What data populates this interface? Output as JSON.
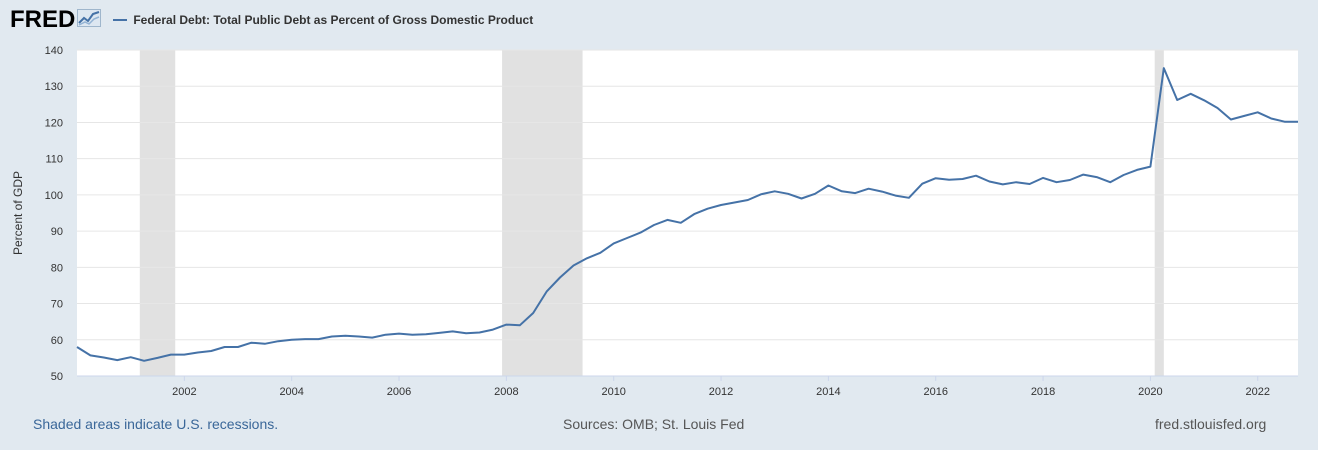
{
  "logo": {
    "text": "FRED",
    "icon": "chart-icon"
  },
  "colors": {
    "line": "#4572a7",
    "recession": "#e1e1e1",
    "plot_bg": "#ffffff",
    "page_bg": "#e1e9f0",
    "grid": "#e6e6e6"
  },
  "footer": {
    "recessions_note": "Shaded areas indicate U.S. recessions.",
    "sources": "Sources: OMB; St. Louis Fed",
    "site": "fred.stlouisfed.org"
  },
  "chart_data": {
    "type": "line",
    "title": "",
    "xlabel": "",
    "ylabel": "Percent of GDP",
    "xlim": [
      2000.0,
      2022.75
    ],
    "ylim": [
      50,
      140
    ],
    "yticks": [
      50,
      60,
      70,
      80,
      90,
      100,
      110,
      120,
      130,
      140
    ],
    "xticks": [
      "2002",
      "2004",
      "2006",
      "2008",
      "2010",
      "2012",
      "2014",
      "2016",
      "2018",
      "2020",
      "2022"
    ],
    "grid": true,
    "legend_position": "top-left",
    "recessions": [
      [
        2001.17,
        2001.83
      ],
      [
        2007.92,
        2009.42
      ],
      [
        2020.08,
        2020.25
      ]
    ],
    "series": [
      {
        "name": "Federal Debt: Total Public Debt as Percent of Gross Domestic Product",
        "x": [
          2000.0,
          2000.25,
          2000.5,
          2000.75,
          2001.0,
          2001.25,
          2001.5,
          2001.75,
          2002.0,
          2002.25,
          2002.5,
          2002.75,
          2003.0,
          2003.25,
          2003.5,
          2003.75,
          2004.0,
          2004.25,
          2004.5,
          2004.75,
          2005.0,
          2005.25,
          2005.5,
          2005.75,
          2006.0,
          2006.25,
          2006.5,
          2006.75,
          2007.0,
          2007.25,
          2007.5,
          2007.75,
          2008.0,
          2008.25,
          2008.5,
          2008.75,
          2009.0,
          2009.25,
          2009.5,
          2009.75,
          2010.0,
          2010.25,
          2010.5,
          2010.75,
          2011.0,
          2011.25,
          2011.5,
          2011.75,
          2012.0,
          2012.25,
          2012.5,
          2012.75,
          2013.0,
          2013.25,
          2013.5,
          2013.75,
          2014.0,
          2014.25,
          2014.5,
          2014.75,
          2015.0,
          2015.25,
          2015.5,
          2015.75,
          2016.0,
          2016.25,
          2016.5,
          2016.75,
          2017.0,
          2017.25,
          2017.5,
          2017.75,
          2018.0,
          2018.25,
          2018.5,
          2018.75,
          2019.0,
          2019.25,
          2019.5,
          2019.75,
          2020.0,
          2020.25,
          2020.5,
          2020.75,
          2021.0,
          2021.25,
          2021.5,
          2021.75,
          2022.0,
          2022.25,
          2022.5,
          2022.75
        ],
        "values": [
          58.0,
          55.7,
          55.1,
          54.4,
          55.2,
          54.2,
          55.0,
          55.9,
          55.9,
          56.5,
          56.9,
          58.0,
          58.0,
          59.2,
          58.9,
          59.6,
          60.0,
          60.2,
          60.2,
          60.9,
          61.1,
          60.9,
          60.6,
          61.4,
          61.7,
          61.4,
          61.5,
          61.9,
          62.3,
          61.8,
          62.0,
          62.8,
          64.2,
          64.0,
          67.4,
          73.3,
          77.2,
          80.5,
          82.5,
          84.0,
          86.6,
          88.1,
          89.6,
          91.7,
          93.1,
          92.3,
          94.7,
          96.2,
          97.2,
          97.9,
          98.6,
          100.2,
          101.0,
          100.3,
          99.0,
          100.3,
          102.6,
          101.0,
          100.5,
          101.7,
          100.9,
          99.8,
          99.2,
          103.1,
          104.6,
          104.2,
          104.4,
          105.3,
          103.7,
          102.9,
          103.5,
          103.0,
          104.7,
          103.5,
          104.1,
          105.6,
          104.9,
          103.5,
          105.5,
          106.9,
          107.8,
          135.0,
          126.2,
          127.9,
          126.1,
          124.0,
          120.8,
          121.8,
          122.8,
          121.1,
          120.2,
          120.2
        ]
      }
    ]
  }
}
